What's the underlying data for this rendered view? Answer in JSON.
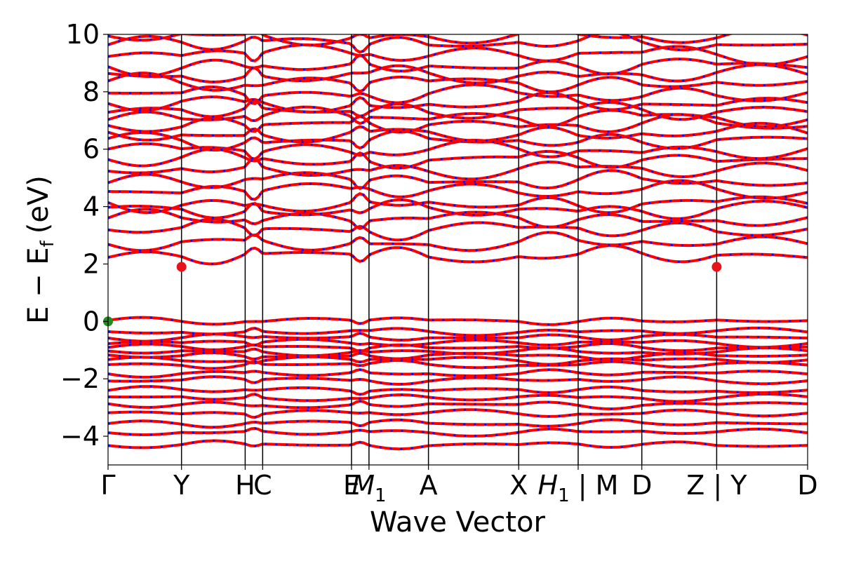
{
  "chart_data": {
    "type": "line",
    "title": "",
    "xlabel": "Wave Vector",
    "ylabel": "E − E",
    "ylabel_sub": "f",
    "ylabel_unit": "(eV)",
    "ylim": [
      -5,
      10
    ],
    "yticks": [
      -4,
      -2,
      0,
      2,
      4,
      6,
      8,
      10
    ],
    "ytick_labels": [
      "−4",
      "−2",
      "0",
      "2",
      "4",
      "6",
      "8",
      "10"
    ],
    "xlim": [
      0,
      10
    ],
    "kpoints": [
      {
        "x": 0.0,
        "label": "Γ"
      },
      {
        "x": 1.05,
        "label": "Y"
      },
      {
        "x": 1.96,
        "label": "H"
      },
      {
        "x": 2.21,
        "label": "C"
      },
      {
        "x": 3.48,
        "label": "E"
      },
      {
        "x": 3.73,
        "label": "M",
        "sub": "1",
        "italic": true
      },
      {
        "x": 4.58,
        "label": "A"
      },
      {
        "x": 5.87,
        "label": "X"
      },
      {
        "x": 6.72,
        "label": "H",
        "sub": "1",
        "italic": true,
        "suffix": " | M"
      },
      {
        "x": 7.63,
        "label": "D"
      },
      {
        "x": 8.7,
        "label": "Z | Y"
      },
      {
        "x": 10.0,
        "label": "D"
      }
    ],
    "markers": [
      {
        "name": "vbm",
        "x": 0.0,
        "y": 0.0,
        "color": "#228B22"
      },
      {
        "name": "cbm-1",
        "x": 1.05,
        "y": 1.9,
        "color": "#e8121a"
      },
      {
        "name": "cbm-2",
        "x": 8.7,
        "y": 1.9,
        "color": "#e8121a"
      }
    ],
    "spin_colors": {
      "up": "#ff0000",
      "down": "#1010ee"
    },
    "bands_valence": [
      0.02,
      -0.35,
      -0.55,
      -0.75,
      -0.9,
      -1.05,
      -1.2,
      -1.35,
      -1.5,
      -1.8,
      -2.05,
      -2.4,
      -2.65,
      -2.9,
      -3.2,
      -3.55,
      -3.85,
      -4.3
    ],
    "bands_conduction": [
      2.3,
      2.75,
      3.2,
      3.55,
      3.9,
      4.1,
      4.55,
      4.9,
      5.3,
      5.65,
      5.95,
      6.3,
      6.55,
      6.85,
      7.1,
      7.35,
      7.6,
      7.9,
      8.3,
      8.6,
      8.9,
      9.3,
      9.7,
      9.95
    ]
  }
}
